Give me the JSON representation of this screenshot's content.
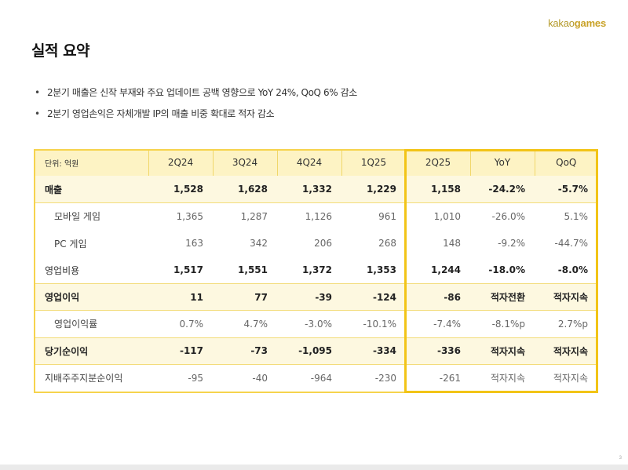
{
  "brand": {
    "part1": "kakao",
    "part2": "games"
  },
  "title": "실적 요약",
  "bullets": [
    "2분기 매출은 신작 부재와 주요 업데이트 공백 영향으로 YoY 24%, QoQ 6% 감소",
    "2분기 영업손익은 자체개발 IP의 매출 비중 확대로 적자 감소"
  ],
  "table": {
    "headers": [
      "단위: 억원",
      "2Q24",
      "3Q24",
      "4Q24",
      "1Q25",
      "2Q25",
      "YoY",
      "QoQ"
    ],
    "rows": [
      {
        "label": "매출",
        "cells": [
          "1,528",
          "1,628",
          "1,332",
          "1,229",
          "1,158",
          "-24.2%",
          "-5.7%"
        ]
      },
      {
        "label": "모바일 게임",
        "cells": [
          "1,365",
          "1,287",
          "1,126",
          "961",
          "1,010",
          "-26.0%",
          "5.1%"
        ]
      },
      {
        "label": "PC 게임",
        "cells": [
          "163",
          "342",
          "206",
          "268",
          "148",
          "-9.2%",
          "-44.7%"
        ]
      },
      {
        "label": "영업비용",
        "cells": [
          "1,517",
          "1,551",
          "1,372",
          "1,353",
          "1,244",
          "-18.0%",
          "-8.0%"
        ]
      },
      {
        "label": "영업이익",
        "cells": [
          "11",
          "77",
          "-39",
          "-124",
          "-86",
          "적자전환",
          "적자지속"
        ]
      },
      {
        "label": "영업이익률",
        "cells": [
          "0.7%",
          "4.7%",
          "-3.0%",
          "-10.1%",
          "-7.4%",
          "-8.1%p",
          "2.7%p"
        ]
      },
      {
        "label": "당기순이익",
        "cells": [
          "-117",
          "-73",
          "-1,095",
          "-334",
          "-336",
          "적자지속",
          "적자지속"
        ]
      },
      {
        "label": "지배주주지분순이익",
        "cells": [
          "-95",
          "-40",
          "-964",
          "-230",
          "-261",
          "적자지속",
          "적자지속"
        ]
      }
    ]
  },
  "page_number": "3"
}
